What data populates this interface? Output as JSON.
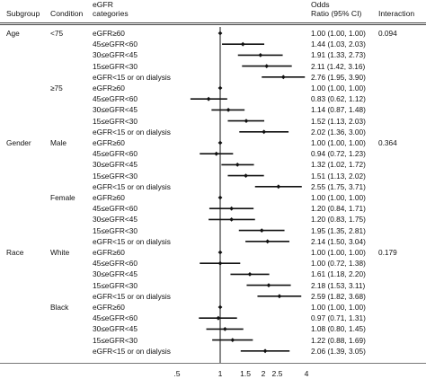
{
  "headers": {
    "subgroup": "Subgroup",
    "condition": "Condition",
    "egfr_line1": "eGFR",
    "egfr_line2": "categories",
    "or_line1": "Odds",
    "or_line2": "Ratio (95% CI)",
    "interaction": "Interaction"
  },
  "groups": [
    {
      "subgroup": "Age",
      "interaction": "0.094",
      "conditions": [
        {
          "condition": "<75",
          "rows": [
            {
              "category": "eGFR≥60",
              "or_text": "1.00 (1.00, 1.00)"
            },
            {
              "category": "45≤eGFR<60",
              "or_text": "1.44 (1.03, 2.03)"
            },
            {
              "category": "30≤eGFR<45",
              "or_text": "1.91 (1.33, 2.73)"
            },
            {
              "category": "15≤eGFR<30",
              "or_text": "2.11 (1.42, 3.16)"
            },
            {
              "category": "eGFR<15 or on dialysis",
              "or_text": "2.76 (1.95, 3.90)"
            }
          ]
        },
        {
          "condition": "≥75",
          "rows": [
            {
              "category": "eGFR≥60",
              "or_text": "1.00 (1.00, 1.00)"
            },
            {
              "category": "45≤eGFR<60",
              "or_text": "0.83 (0.62, 1.12)"
            },
            {
              "category": "30≤eGFR<45",
              "or_text": "1.14 (0.87, 1.48)"
            },
            {
              "category": "15≤eGFR<30",
              "or_text": "1.52 (1.13, 2.03)"
            },
            {
              "category": "eGFR<15 or on dialysis",
              "or_text": "2.02 (1.36, 3.00)"
            }
          ]
        }
      ]
    },
    {
      "subgroup": "Gender",
      "interaction": "0.364",
      "conditions": [
        {
          "condition": "Male",
          "rows": [
            {
              "category": "eGFR≥60",
              "or_text": "1.00 (1.00, 1.00)"
            },
            {
              "category": "45≤eGFR<60",
              "or_text": "0.94 (0.72, 1.23)"
            },
            {
              "category": "30≤eGFR<45",
              "or_text": "1.32 (1.02, 1.72)"
            },
            {
              "category": "15≤eGFR<30",
              "or_text": "1.51 (1.13, 2.02)"
            },
            {
              "category": "eGFR<15 or on dialysis",
              "or_text": "2.55 (1.75, 3.71)"
            }
          ]
        },
        {
          "condition": "Female",
          "rows": [
            {
              "category": "eGFR≥60",
              "or_text": "1.00 (1.00, 1.00)"
            },
            {
              "category": "45≤eGFR<60",
              "or_text": "1.20 (0.84, 1.71)"
            },
            {
              "category": "30≤eGFR<45",
              "or_text": "1.20 (0.83, 1.75)"
            },
            {
              "category": "15≤eGFR<30",
              "or_text": "1.95 (1.35, 2.81)"
            },
            {
              "category": "eGFR<15 or on dialysis",
              "or_text": "2.14 (1.50, 3.04)"
            }
          ]
        }
      ]
    },
    {
      "subgroup": "Race",
      "interaction": "0.179",
      "conditions": [
        {
          "condition": "White",
          "rows": [
            {
              "category": "eGFR≥60",
              "or_text": "1.00 (1.00, 1.00)"
            },
            {
              "category": "45≤eGFR<60",
              "or_text": "1.00 (0.72, 1.38)"
            },
            {
              "category": "30≤eGFR<45",
              "or_text": "1.61 (1.18, 2.20)"
            },
            {
              "category": "15≤eGFR<30",
              "or_text": "2.18 (1.53, 3.11)"
            },
            {
              "category": "eGFR<15 or on dialysis",
              "or_text": "2.59 (1.82, 3.68)"
            }
          ]
        },
        {
          "condition": "Black",
          "rows": [
            {
              "category": "eGFR≥60",
              "or_text": "1.00 (1.00, 1.00)"
            },
            {
              "category": "45≤eGFR<60",
              "or_text": "0.97 (0.71, 1.31)"
            },
            {
              "category": "30≤eGFR<45",
              "or_text": "1.08 (0.80, 1.45)"
            },
            {
              "category": "15≤eGFR<30",
              "or_text": "1.22 (0.88, 1.69)"
            },
            {
              "category": "eGFR<15 or on dialysis",
              "or_text": "2.06 (1.39, 3.05)"
            }
          ]
        }
      ]
    }
  ],
  "chart_data": {
    "type": "forest",
    "x_scale": "log",
    "xlim": [
      0.5,
      4
    ],
    "reference_line": 1,
    "x_ticks": [
      {
        "value": 0.5,
        "label": ".5"
      },
      {
        "value": 1,
        "label": "1"
      },
      {
        "value": 1.5,
        "label": "1.5"
      },
      {
        "value": 2,
        "label": "2"
      },
      {
        "value": 2.5,
        "label": "2.5"
      },
      {
        "value": 4,
        "label": "4"
      }
    ],
    "points": [
      {
        "or": 1.0,
        "lo": 1.0,
        "hi": 1.0
      },
      {
        "or": 1.44,
        "lo": 1.03,
        "hi": 2.03
      },
      {
        "or": 1.91,
        "lo": 1.33,
        "hi": 2.73
      },
      {
        "or": 2.11,
        "lo": 1.42,
        "hi": 3.16
      },
      {
        "or": 2.76,
        "lo": 1.95,
        "hi": 3.9
      },
      {
        "or": 1.0,
        "lo": 1.0,
        "hi": 1.0
      },
      {
        "or": 0.83,
        "lo": 0.62,
        "hi": 1.12
      },
      {
        "or": 1.14,
        "lo": 0.87,
        "hi": 1.48
      },
      {
        "or": 1.52,
        "lo": 1.13,
        "hi": 2.03
      },
      {
        "or": 2.02,
        "lo": 1.36,
        "hi": 3.0
      },
      {
        "or": 1.0,
        "lo": 1.0,
        "hi": 1.0
      },
      {
        "or": 0.94,
        "lo": 0.72,
        "hi": 1.23
      },
      {
        "or": 1.32,
        "lo": 1.02,
        "hi": 1.72
      },
      {
        "or": 1.51,
        "lo": 1.13,
        "hi": 2.02
      },
      {
        "or": 2.55,
        "lo": 1.75,
        "hi": 3.71
      },
      {
        "or": 1.0,
        "lo": 1.0,
        "hi": 1.0
      },
      {
        "or": 1.2,
        "lo": 0.84,
        "hi": 1.71
      },
      {
        "or": 1.2,
        "lo": 0.83,
        "hi": 1.75
      },
      {
        "or": 1.95,
        "lo": 1.35,
        "hi": 2.81
      },
      {
        "or": 2.14,
        "lo": 1.5,
        "hi": 3.04
      },
      {
        "or": 1.0,
        "lo": 1.0,
        "hi": 1.0
      },
      {
        "or": 1.0,
        "lo": 0.72,
        "hi": 1.38
      },
      {
        "or": 1.61,
        "lo": 1.18,
        "hi": 2.2
      },
      {
        "or": 2.18,
        "lo": 1.53,
        "hi": 3.11
      },
      {
        "or": 2.59,
        "lo": 1.82,
        "hi": 3.68
      },
      {
        "or": 1.0,
        "lo": 1.0,
        "hi": 1.0
      },
      {
        "or": 0.97,
        "lo": 0.71,
        "hi": 1.31
      },
      {
        "or": 1.08,
        "lo": 0.8,
        "hi": 1.45
      },
      {
        "or": 1.22,
        "lo": 0.88,
        "hi": 1.69
      },
      {
        "or": 2.06,
        "lo": 1.39,
        "hi": 3.05
      }
    ]
  }
}
